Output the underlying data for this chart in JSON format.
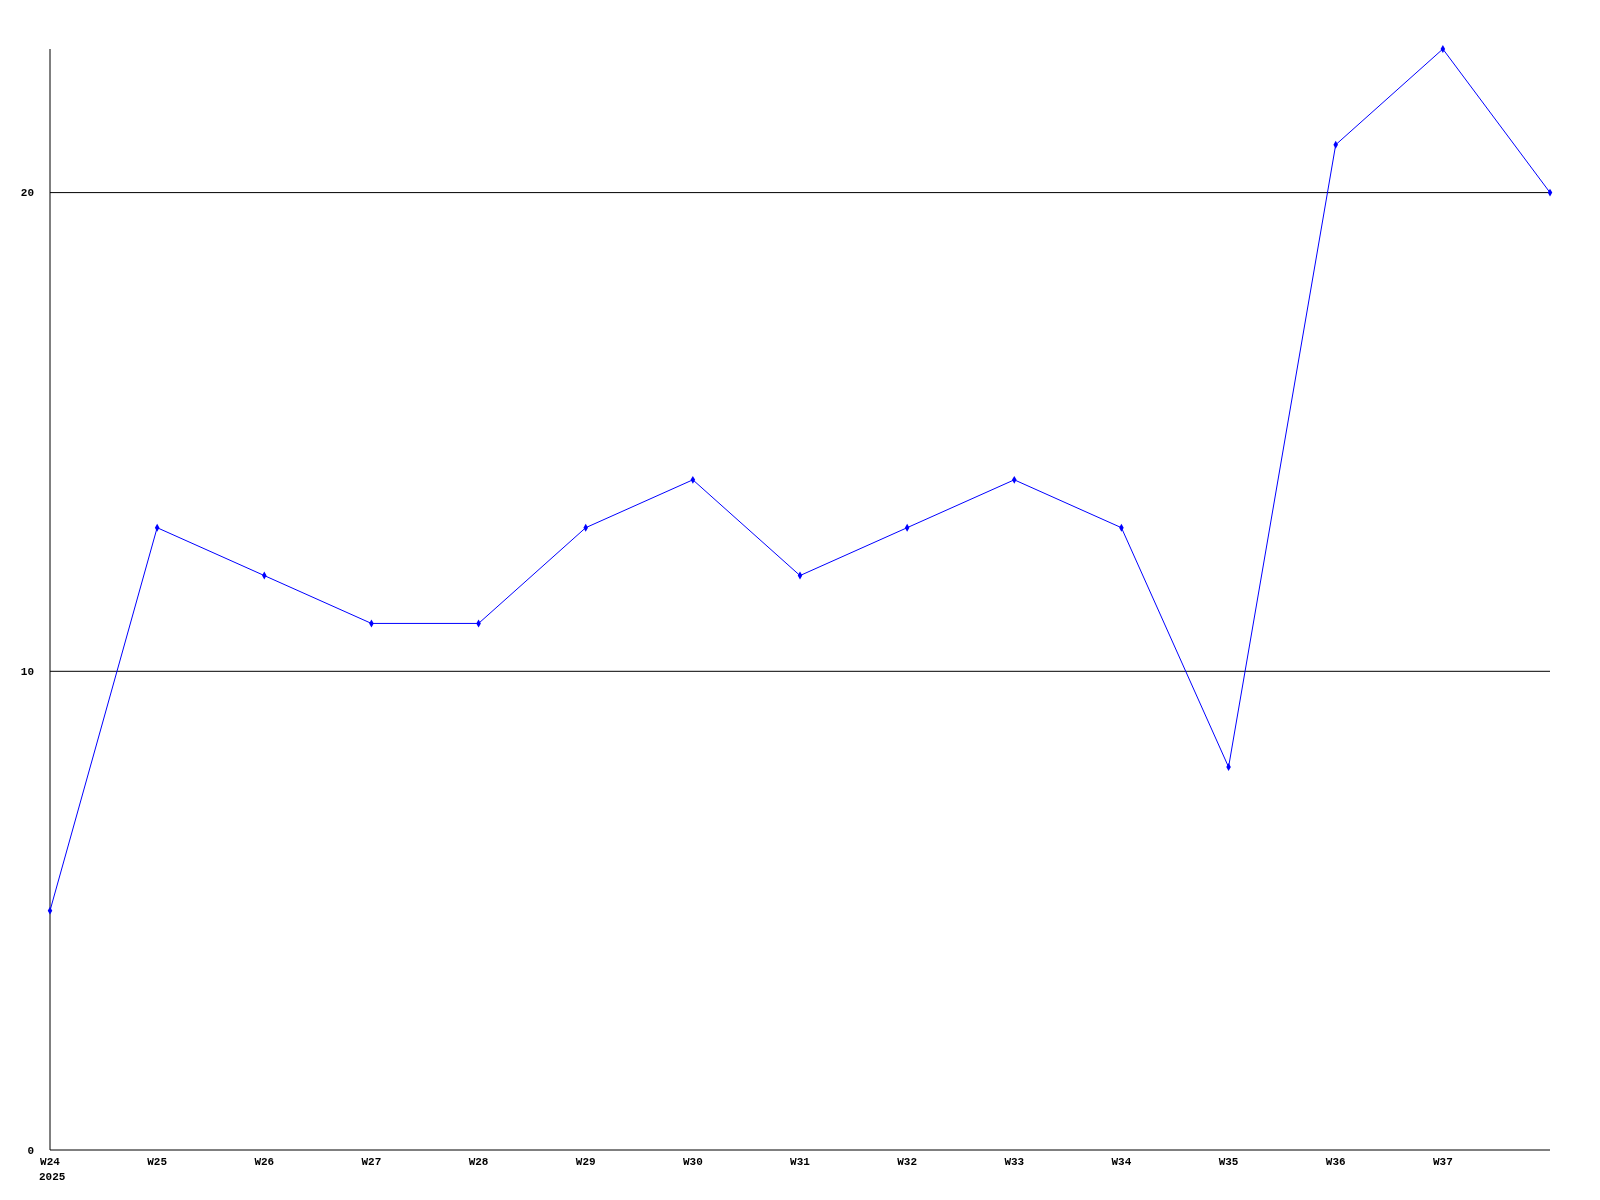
{
  "chart_data": {
    "type": "line",
    "categories": [
      "W24",
      "W25",
      "W26",
      "W27",
      "W28",
      "W29",
      "W30",
      "W31",
      "W32",
      "W33",
      "W34",
      "W35",
      "W36",
      "W37",
      null
    ],
    "series": [
      {
        "color": "#0000ff",
        "values": [
          5,
          13,
          12,
          11,
          11,
          13,
          14,
          12,
          13,
          14,
          13,
          8,
          21,
          23,
          20
        ]
      }
    ],
    "ylim": [
      0,
      23
    ],
    "yticks": [
      0,
      10,
      20
    ],
    "grid": "y",
    "marker": "diamond",
    "annotations": [
      "2025"
    ]
  }
}
